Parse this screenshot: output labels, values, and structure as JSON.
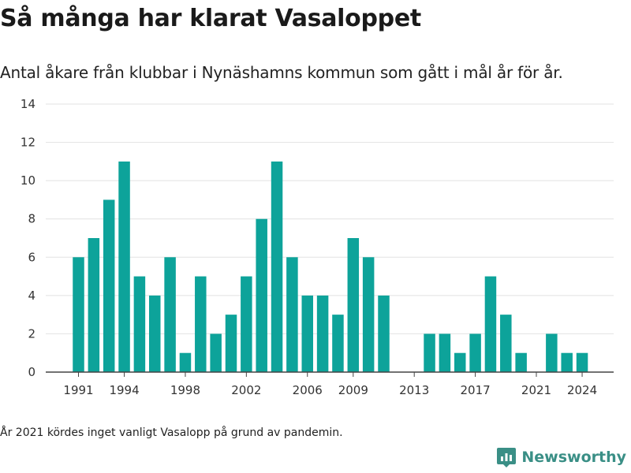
{
  "title": "Så många har klarat Vasaloppet",
  "subtitle": "Antal åkare från klubbar i Nynäshamns kommun som gått i mål år för år.",
  "note": "År 2021 kördes inget vanligt Vasalopp på grund av pandemin.",
  "brand": {
    "name": "Newsworthy",
    "icon": "newsworthy-logo-icon",
    "color": "#3a8f86"
  },
  "chart_data": {
    "type": "bar",
    "x": [
      1991,
      1992,
      1993,
      1994,
      1995,
      1996,
      1997,
      1998,
      1999,
      2000,
      2001,
      2002,
      2003,
      2004,
      2005,
      2006,
      2007,
      2008,
      2009,
      2010,
      2011,
      2012,
      2013,
      2014,
      2015,
      2016,
      2017,
      2018,
      2019,
      2020,
      2021,
      2022,
      2023,
      2024
    ],
    "values": [
      6,
      7,
      9,
      11,
      5,
      4,
      6,
      1,
      5,
      2,
      3,
      5,
      8,
      11,
      6,
      4,
      4,
      3,
      7,
      6,
      4,
      0,
      0,
      2,
      2,
      1,
      2,
      5,
      3,
      1,
      0,
      2,
      1,
      1
    ],
    "x_ticks": [
      "1991",
      "1994",
      "1998",
      "2002",
      "2006",
      "2009",
      "2013",
      "2017",
      "2021",
      "2024"
    ],
    "y_ticks": [
      "0",
      "2",
      "4",
      "6",
      "8",
      "10",
      "12",
      "14"
    ],
    "ylim": [
      0,
      14
    ],
    "grid": true,
    "bar_color": "#0da39a",
    "grid_color": "#e2e2e2",
    "axis_color": "#444444"
  }
}
